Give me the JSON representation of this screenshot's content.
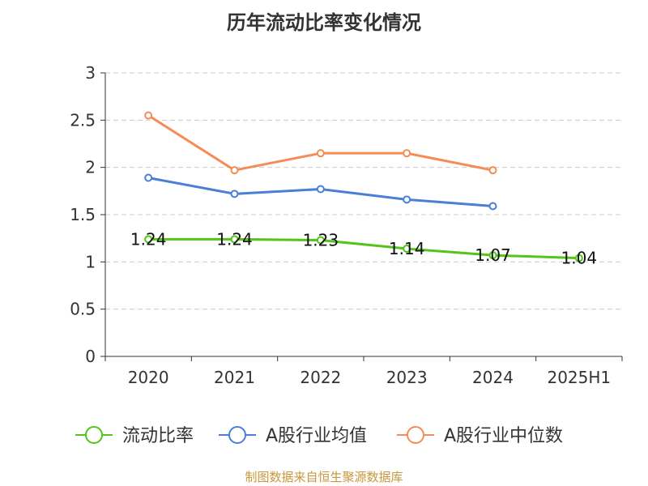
{
  "chart_data": {
    "type": "line",
    "title": "历年流动比率变化情况",
    "categories": [
      "2020",
      "2021",
      "2022",
      "2023",
      "2024",
      "2025H1"
    ],
    "ylim": [
      0,
      3
    ],
    "yticks": [
      "0",
      "0.5",
      "1",
      "1.5",
      "2",
      "2.5",
      "3"
    ],
    "grid": true,
    "legend_position": "bottom",
    "series": [
      {
        "name": "流动比率",
        "color": "#52c41a",
        "show_labels": true,
        "values": [
          1.24,
          1.24,
          1.23,
          1.14,
          1.07,
          1.04
        ],
        "labels": [
          "1.24",
          "1.24",
          "1.23",
          "1.14",
          "1.07",
          "1.04"
        ]
      },
      {
        "name": "A股行业均值",
        "color": "#4a7fd8",
        "show_labels": false,
        "values": [
          1.89,
          1.72,
          1.77,
          1.66,
          1.59,
          null
        ]
      },
      {
        "name": "A股行业中位数",
        "color": "#f58c55",
        "show_labels": false,
        "values": [
          2.55,
          1.97,
          2.15,
          2.15,
          1.97,
          null
        ]
      }
    ]
  },
  "source_text": "制图数据来自恒生聚源数据库"
}
